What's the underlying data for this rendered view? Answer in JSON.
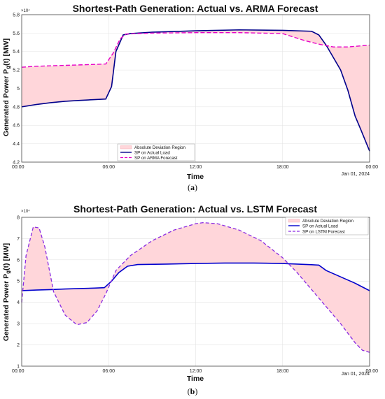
{
  "chart_data": [
    {
      "type": "line",
      "title": "Shortest-Path Generation: Actual vs. ARMA Forecast",
      "xlabel": "Time",
      "ylabel": "Generated Power P_g(t) [MW]",
      "ylabel_prefix": "Generated Power  P",
      "ylabel_sub": "g",
      "ylabel_suffix": "(t)  [MW]",
      "x_tick_labels": [
        "00:00",
        "06:00",
        "12:00",
        "18:00",
        "00:00"
      ],
      "x_date_label": "Jan 01, 2024",
      "y_tick_labels": [
        "4.2",
        "4.4",
        "4.6",
        "4.8",
        "5",
        "5.2",
        "5.4",
        "5.6",
        "5.8"
      ],
      "y_exponent_label": "×10⁴",
      "xlim_hours": [
        0,
        24
      ],
      "ylim": [
        42000,
        58000
      ],
      "grid": true,
      "legend_position": "bottom-center",
      "legend": [
        "Absolute Deviation Region",
        "SP on Actual Load",
        "SP on ARMA Forecast"
      ],
      "caption": "a",
      "series": [
        {
          "name": "SP on Actual Load",
          "color": "#00008B",
          "style": "solid",
          "x_hours": [
            0,
            1,
            2,
            3,
            4,
            5,
            5.8,
            6.2,
            6.5,
            7,
            7.5,
            9,
            12,
            15,
            18,
            20,
            20.5,
            21,
            22,
            22.5,
            23,
            23.4,
            24
          ],
          "values": [
            48000,
            48250,
            48450,
            48600,
            48700,
            48780,
            48850,
            50200,
            54000,
            55800,
            55950,
            56100,
            56250,
            56350,
            56300,
            56200,
            55800,
            54700,
            52000,
            49800,
            47000,
            45500,
            43200
          ]
        },
        {
          "name": "SP on ARMA Forecast",
          "color": "#E600C8",
          "style": "dashed",
          "x_hours": [
            0,
            1,
            2,
            3,
            4,
            5,
            5.8,
            6.3,
            6.8,
            7.2,
            9,
            12,
            15,
            18,
            19.5,
            20.5,
            21.5,
            22.5,
            23.3,
            24
          ],
          "values": [
            52300,
            52400,
            52450,
            52500,
            52550,
            52600,
            52650,
            53800,
            55400,
            55900,
            56000,
            56050,
            56050,
            55950,
            55200,
            54800,
            54500,
            54500,
            54600,
            54700
          ]
        }
      ]
    },
    {
      "type": "line",
      "title": "Shortest-Path Generation: Actual vs. LSTM Forecast",
      "xlabel": "Time",
      "ylabel": "Generated Power P_g(t) [MW]",
      "ylabel_prefix": "Generated Power  P",
      "ylabel_sub": "g",
      "ylabel_suffix": "(t)  [MW]",
      "x_tick_labels": [
        "00:00",
        "06:00",
        "12:00",
        "18:00",
        "00:00"
      ],
      "x_date_label": "Jan 01, 2024",
      "y_tick_labels": [
        "1",
        "2",
        "3",
        "4",
        "5",
        "6",
        "7",
        "8"
      ],
      "y_exponent_label": "×10⁴",
      "xlim_hours": [
        0,
        24
      ],
      "ylim": [
        10000,
        80000
      ],
      "grid": true,
      "legend_position": "top-right",
      "legend": [
        "Absolute Deviation Region",
        "SP on Actual Load",
        "SP on LSTM Forecast"
      ],
      "caption": "b",
      "series": [
        {
          "name": "SP on Actual Load",
          "color": "#0000CD",
          "style": "solid",
          "x_hours": [
            0,
            1,
            2,
            3,
            4,
            5,
            5.7,
            6.2,
            6.7,
            7.3,
            8,
            10,
            12,
            14,
            16,
            18,
            19,
            20,
            20.5,
            21,
            22,
            23,
            24
          ],
          "values": [
            45500,
            45800,
            46000,
            46300,
            46500,
            46700,
            46900,
            50000,
            54000,
            57000,
            57800,
            58000,
            58300,
            58500,
            58500,
            58300,
            58000,
            57700,
            57500,
            55000,
            52000,
            49000,
            45500
          ]
        },
        {
          "name": "SP on LSTM Forecast",
          "color": "#8A2BE2",
          "style": "dashed",
          "x_hours": [
            0,
            0.3,
            0.8,
            1.2,
            1.6,
            2.2,
            3,
            3.8,
            4.5,
            5.2,
            5.8,
            6.5,
            7.5,
            9,
            10.5,
            12,
            12.5,
            13.5,
            15,
            16.5,
            18,
            19,
            20,
            21,
            22,
            23,
            23.5,
            24
          ],
          "values": [
            40000,
            62000,
            75500,
            75000,
            66000,
            45000,
            34000,
            29500,
            30500,
            36000,
            44000,
            55000,
            62000,
            69000,
            74000,
            77000,
            77500,
            77000,
            74000,
            69000,
            61000,
            54000,
            46000,
            38000,
            30000,
            21000,
            17500,
            16500
          ]
        }
      ]
    }
  ]
}
